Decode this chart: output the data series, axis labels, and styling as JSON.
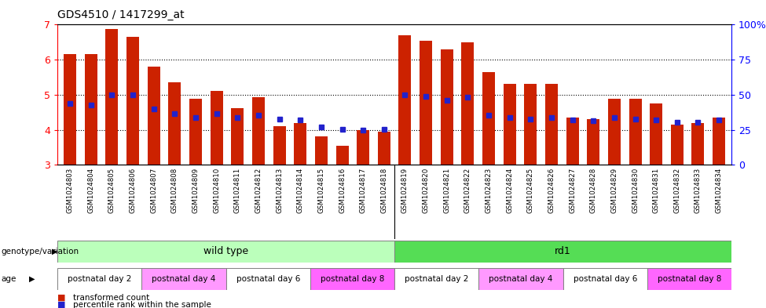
{
  "title": "GDS4510 / 1417299_at",
  "samples": [
    "GSM1024803",
    "GSM1024804",
    "GSM1024805",
    "GSM1024806",
    "GSM1024807",
    "GSM1024808",
    "GSM1024809",
    "GSM1024810",
    "GSM1024811",
    "GSM1024812",
    "GSM1024813",
    "GSM1024814",
    "GSM1024815",
    "GSM1024816",
    "GSM1024817",
    "GSM1024818",
    "GSM1024819",
    "GSM1024820",
    "GSM1024821",
    "GSM1024822",
    "GSM1024823",
    "GSM1024824",
    "GSM1024825",
    "GSM1024826",
    "GSM1024827",
    "GSM1024828",
    "GSM1024829",
    "GSM1024830",
    "GSM1024831",
    "GSM1024832",
    "GSM1024833",
    "GSM1024834"
  ],
  "red_values": [
    6.15,
    6.15,
    6.88,
    6.65,
    5.8,
    5.35,
    4.88,
    5.1,
    4.62,
    4.92,
    4.1,
    4.2,
    3.82,
    3.55,
    4.0,
    3.95,
    6.7,
    6.55,
    6.3,
    6.5,
    5.65,
    5.3,
    5.3,
    5.3,
    4.35,
    4.3,
    4.88,
    4.88,
    4.75,
    4.15,
    4.2,
    4.35
  ],
  "blue_values": [
    4.75,
    4.7,
    5.0,
    5.0,
    4.6,
    4.45,
    4.35,
    4.45,
    4.35,
    4.42,
    4.3,
    4.27,
    4.07,
    4.02,
    4.0,
    4.02,
    5.0,
    4.95,
    4.85,
    4.92,
    4.42,
    4.35,
    4.3,
    4.35,
    4.27,
    4.25,
    4.35,
    4.3,
    4.27,
    4.22,
    4.22,
    4.27
  ],
  "ylim": [
    3.0,
    7.0
  ],
  "yticks": [
    3,
    4,
    5,
    6,
    7
  ],
  "right_ytick_vals": [
    0,
    25,
    50,
    75,
    100
  ],
  "right_ylabels": [
    "0",
    "25",
    "50",
    "75",
    "100%"
  ],
  "bar_color": "#CC2200",
  "dot_color": "#2222CC",
  "genotype_groups": [
    {
      "label": "wild type",
      "start": 0,
      "end": 16,
      "color": "#BBFFBB"
    },
    {
      "label": "rd1",
      "start": 16,
      "end": 32,
      "color": "#55DD55"
    }
  ],
  "age_groups": [
    {
      "label": "postnatal day 2",
      "start": 0,
      "end": 4,
      "color": "#FFFFFF"
    },
    {
      "label": "postnatal day 4",
      "start": 4,
      "end": 8,
      "color": "#FF99FF"
    },
    {
      "label": "postnatal day 6",
      "start": 8,
      "end": 12,
      "color": "#FFFFFF"
    },
    {
      "label": "postnatal day 8",
      "start": 12,
      "end": 16,
      "color": "#FF66FF"
    },
    {
      "label": "postnatal day 2",
      "start": 16,
      "end": 20,
      "color": "#FFFFFF"
    },
    {
      "label": "postnatal day 4",
      "start": 20,
      "end": 24,
      "color": "#FF99FF"
    },
    {
      "label": "postnatal day 6",
      "start": 24,
      "end": 28,
      "color": "#FFFFFF"
    },
    {
      "label": "postnatal day 8",
      "start": 28,
      "end": 32,
      "color": "#FF66FF"
    }
  ],
  "legend_items": [
    {
      "label": "transformed count",
      "color": "#CC2200"
    },
    {
      "label": "percentile rank within the sample",
      "color": "#2222CC"
    }
  ],
  "fig_width": 9.75,
  "fig_height": 3.93,
  "dpi": 100
}
